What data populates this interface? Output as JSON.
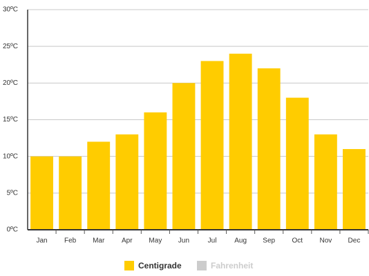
{
  "chart_data": {
    "type": "bar",
    "categories": [
      "Jan",
      "Feb",
      "Mar",
      "Apr",
      "May",
      "Jun",
      "Jul",
      "Aug",
      "Sep",
      "Oct",
      "Nov",
      "Dec"
    ],
    "series": [
      {
        "name": "Centigrade",
        "color": "#ffcc00",
        "values": [
          10,
          10,
          12,
          13,
          16,
          20,
          23,
          24,
          22,
          18,
          13,
          11
        ]
      }
    ],
    "inactive_legend": [
      {
        "name": "Fahrenheit",
        "color": "#cccccc"
      }
    ],
    "ylim": [
      0,
      30
    ],
    "yticks": [
      {
        "value": 0,
        "label": "0ºC"
      },
      {
        "value": 5,
        "label": "5ºC"
      },
      {
        "value": 10,
        "label": "10ºC"
      },
      {
        "value": 15,
        "label": "15ºC"
      },
      {
        "value": 20,
        "label": "20ºC"
      },
      {
        "value": 25,
        "label": "25ºC"
      },
      {
        "value": 30,
        "label": "30ºC"
      }
    ],
    "grid": true
  }
}
